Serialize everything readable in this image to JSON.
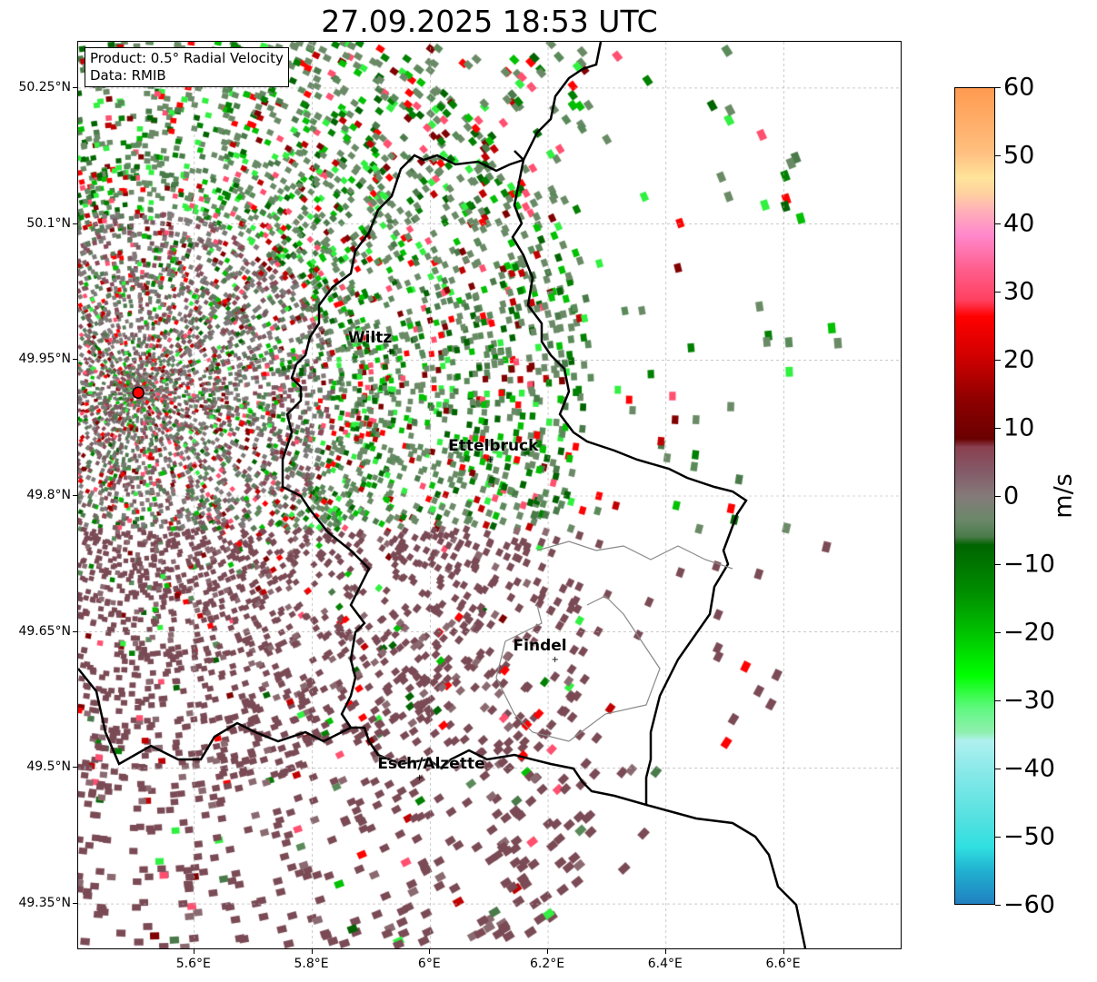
{
  "title": "27.09.2025 18:53 UTC",
  "info_box": {
    "line1": "Product: 0.5° Radial Velocity",
    "line2": "Data: RMIB"
  },
  "map": {
    "lon_range": [
      5.403,
      6.798
    ],
    "lat_range": [
      49.301,
      50.301
    ],
    "x_ticks": [
      "5.6°E",
      "5.8°E",
      "6°E",
      "6.2°E",
      "6.4°E",
      "6.6°E"
    ],
    "x_tick_values": [
      5.6,
      5.8,
      6.0,
      6.2,
      6.4,
      6.6
    ],
    "y_ticks": [
      "50.25°N",
      "50.1°N",
      "49.95°N",
      "49.8°N",
      "49.65°N",
      "49.5°N",
      "49.35°N"
    ],
    "y_tick_values": [
      50.25,
      50.1,
      49.95,
      49.8,
      49.65,
      49.5,
      49.35
    ],
    "radar_site": {
      "lon": 5.505,
      "lat": 49.914
    },
    "cities": [
      {
        "name": "Wiltz",
        "lon": 5.93,
        "lat": 49.966
      },
      {
        "name": "Ettelbruck",
        "lon": 6.1,
        "lat": 49.847
      },
      {
        "name": "Findel",
        "lon": 6.21,
        "lat": 49.627
      },
      {
        "name": "Esch/Alzette",
        "lon": 5.98,
        "lat": 49.496
      }
    ]
  },
  "colorbar": {
    "label": "m/s",
    "range": [
      -60,
      60
    ],
    "ticks": [
      "60",
      "50",
      "40",
      "30",
      "20",
      "10",
      "0",
      "−10",
      "−20",
      "−30",
      "−40",
      "−50",
      "−60"
    ],
    "tick_values": [
      60,
      50,
      40,
      30,
      20,
      10,
      0,
      -10,
      -20,
      -30,
      -40,
      -50,
      -60
    ]
  }
}
